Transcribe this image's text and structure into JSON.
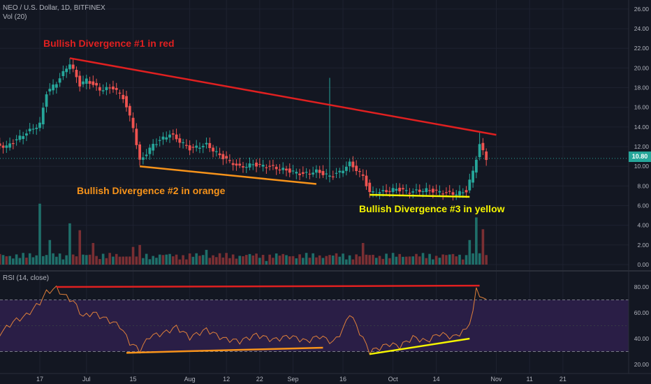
{
  "header": {
    "symbol_line": "NEO / U.S. Dollar, 1D, BITFINEX",
    "volume_label": "Vol (20)"
  },
  "rsi_header": "RSI (14, close)",
  "annotations": {
    "div1": "Bullish Divergence #1 in red",
    "div2": "Bullish Divergence #2 in orange",
    "div3": "Bullish Divergence #3 in yellow"
  },
  "colors": {
    "background": "#131722",
    "up": "#26a69a",
    "down": "#ef5350",
    "red_line": "#e02020",
    "orange_line": "#f7931a",
    "yellow_line": "#f5f500",
    "rsi_line": "#e0803a",
    "rsi_band": "#2a1e46",
    "current_price": "#26a69a"
  },
  "current_price_label": "10.80",
  "chart_data": [
    {
      "type": "candlestick",
      "title": "NEO / U.S. Dollar, 1D, BITFINEX",
      "x_tick_labels": [
        "17",
        "Jul",
        "15",
        "Aug",
        "12",
        "22",
        "Sep",
        "16",
        "Oct",
        "14",
        "Nov",
        "11",
        "21"
      ],
      "y_tick_labels": [
        "0.00",
        "2.00",
        "4.00",
        "6.00",
        "8.00",
        "10.00",
        "12.00",
        "14.00",
        "16.00",
        "18.00",
        "20.00",
        "22.00",
        "24.00",
        "26.00"
      ],
      "ylim": [
        0,
        26
      ],
      "current_price": 10.8,
      "price_series": [
        {
          "date": "Jun 1",
          "close": 12.3
        },
        {
          "date": "Jun 7",
          "close": 12.0
        },
        {
          "date": "Jun 12",
          "close": 13.2
        },
        {
          "date": "Jun 17",
          "close": 14.3
        },
        {
          "date": "Jun 19",
          "close": 17.5
        },
        {
          "date": "Jun 22",
          "close": 18.5
        },
        {
          "date": "Jun 26",
          "close": 20.5
        },
        {
          "date": "Jun 29",
          "close": 18.3
        },
        {
          "date": "Jul 1",
          "close": 18.8
        },
        {
          "date": "Jul 5",
          "close": 17.8
        },
        {
          "date": "Jul 9",
          "close": 18.0
        },
        {
          "date": "Jul 12",
          "close": 17.0
        },
        {
          "date": "Jul 15",
          "close": 14.0
        },
        {
          "date": "Jul 17",
          "close": 10.5
        },
        {
          "date": "Jul 21",
          "close": 12.2
        },
        {
          "date": "Jul 26",
          "close": 13.3
        },
        {
          "date": "Aug 1",
          "close": 11.8
        },
        {
          "date": "Aug 6",
          "close": 12.2
        },
        {
          "date": "Aug 10",
          "close": 11.1
        },
        {
          "date": "Aug 16",
          "close": 9.9
        },
        {
          "date": "Aug 20",
          "close": 10.2
        },
        {
          "date": "Aug 26",
          "close": 9.9
        },
        {
          "date": "Aug 30",
          "close": 9.6
        },
        {
          "date": "Sep 4",
          "close": 9.2
        },
        {
          "date": "Sep 8",
          "close": 9.5
        },
        {
          "date": "Sep 12",
          "close": 9.0
        },
        {
          "date": "Sep 15",
          "close": 9.4
        },
        {
          "date": "Sep 18",
          "close": 10.3
        },
        {
          "date": "Sep 22",
          "close": 9.0
        },
        {
          "date": "Sep 24",
          "close": 7.3
        },
        {
          "date": "Sep 28",
          "close": 7.4
        },
        {
          "date": "Oct 2",
          "close": 7.7
        },
        {
          "date": "Oct 6",
          "close": 7.4
        },
        {
          "date": "Oct 11",
          "close": 7.6
        },
        {
          "date": "Oct 15",
          "close": 7.4
        },
        {
          "date": "Oct 20",
          "close": 7.2
        },
        {
          "date": "Oct 23",
          "close": 7.5
        },
        {
          "date": "Oct 25",
          "close": 9.5
        },
        {
          "date": "Oct 27",
          "close": 12.2
        },
        {
          "date": "Oct 29",
          "close": 10.8
        }
      ],
      "spikes": [
        {
          "date": "Jun 26",
          "high": 21.0
        },
        {
          "date": "Sep 12",
          "high": 19.0
        },
        {
          "date": "Oct 27",
          "high": 13.5
        }
      ]
    },
    {
      "type": "bar",
      "title": "Vol (20)",
      "volume_series": [
        {
          "date": "Jun 17",
          "value": 6.2
        },
        {
          "date": "Jun 20",
          "value": 2.5
        },
        {
          "date": "Jun 26",
          "value": 4.2
        },
        {
          "date": "Jun 29",
          "value": 3.5
        },
        {
          "date": "Jul 3",
          "value": 2.2
        },
        {
          "date": "Jul 15",
          "value": 1.8
        },
        {
          "date": "Jul 17",
          "value": 2.0
        },
        {
          "date": "Aug 6",
          "value": 1.5
        },
        {
          "date": "Sep 22",
          "value": 2.2
        },
        {
          "date": "Oct 24",
          "value": 2.5
        },
        {
          "date": "Oct 26",
          "value": 4.8
        },
        {
          "date": "Oct 28",
          "value": 3.6
        }
      ]
    },
    {
      "type": "line",
      "title": "RSI (14, close)",
      "y_tick_labels": [
        "20.00",
        "40.00",
        "60.00",
        "80.00"
      ],
      "ylim": [
        15,
        90
      ],
      "band": [
        30,
        70
      ],
      "rsi_series": [
        {
          "date": "Jun 1",
          "value": 48
        },
        {
          "date": "Jun 5",
          "value": 44
        },
        {
          "date": "Jun 9",
          "value": 53
        },
        {
          "date": "Jun 13",
          "value": 58
        },
        {
          "date": "Jun 17",
          "value": 68
        },
        {
          "date": "Jun 19",
          "value": 76
        },
        {
          "date": "Jun 22",
          "value": 79
        },
        {
          "date": "Jun 24",
          "value": 74
        },
        {
          "date": "Jun 27",
          "value": 69
        },
        {
          "date": "Jun 30",
          "value": 57
        },
        {
          "date": "Jul 3",
          "value": 60
        },
        {
          "date": "Jul 7",
          "value": 55
        },
        {
          "date": "Jul 11",
          "value": 50
        },
        {
          "date": "Jul 14",
          "value": 37
        },
        {
          "date": "Jul 17",
          "value": 31
        },
        {
          "date": "Jul 20",
          "value": 42
        },
        {
          "date": "Jul 24",
          "value": 44
        },
        {
          "date": "Jul 28",
          "value": 49
        },
        {
          "date": "Aug 1",
          "value": 41
        },
        {
          "date": "Aug 6",
          "value": 47
        },
        {
          "date": "Aug 11",
          "value": 40
        },
        {
          "date": "Aug 16",
          "value": 38
        },
        {
          "date": "Aug 21",
          "value": 43
        },
        {
          "date": "Aug 26",
          "value": 39
        },
        {
          "date": "Aug 31",
          "value": 42
        },
        {
          "date": "Sep 5",
          "value": 38
        },
        {
          "date": "Sep 9",
          "value": 42
        },
        {
          "date": "Sep 13",
          "value": 37
        },
        {
          "date": "Sep 16",
          "value": 47
        },
        {
          "date": "Sep 18",
          "value": 60
        },
        {
          "date": "Sep 21",
          "value": 45
        },
        {
          "date": "Sep 24",
          "value": 30
        },
        {
          "date": "Sep 27",
          "value": 33
        },
        {
          "date": "Sep 30",
          "value": 36
        },
        {
          "date": "Oct 3",
          "value": 34
        },
        {
          "date": "Oct 7",
          "value": 41
        },
        {
          "date": "Oct 11",
          "value": 38
        },
        {
          "date": "Oct 15",
          "value": 44
        },
        {
          "date": "Oct 19",
          "value": 41
        },
        {
          "date": "Oct 23",
          "value": 47
        },
        {
          "date": "Oct 25",
          "value": 60
        },
        {
          "date": "Oct 26",
          "value": 79
        },
        {
          "date": "Oct 28",
          "value": 70
        }
      ]
    }
  ]
}
